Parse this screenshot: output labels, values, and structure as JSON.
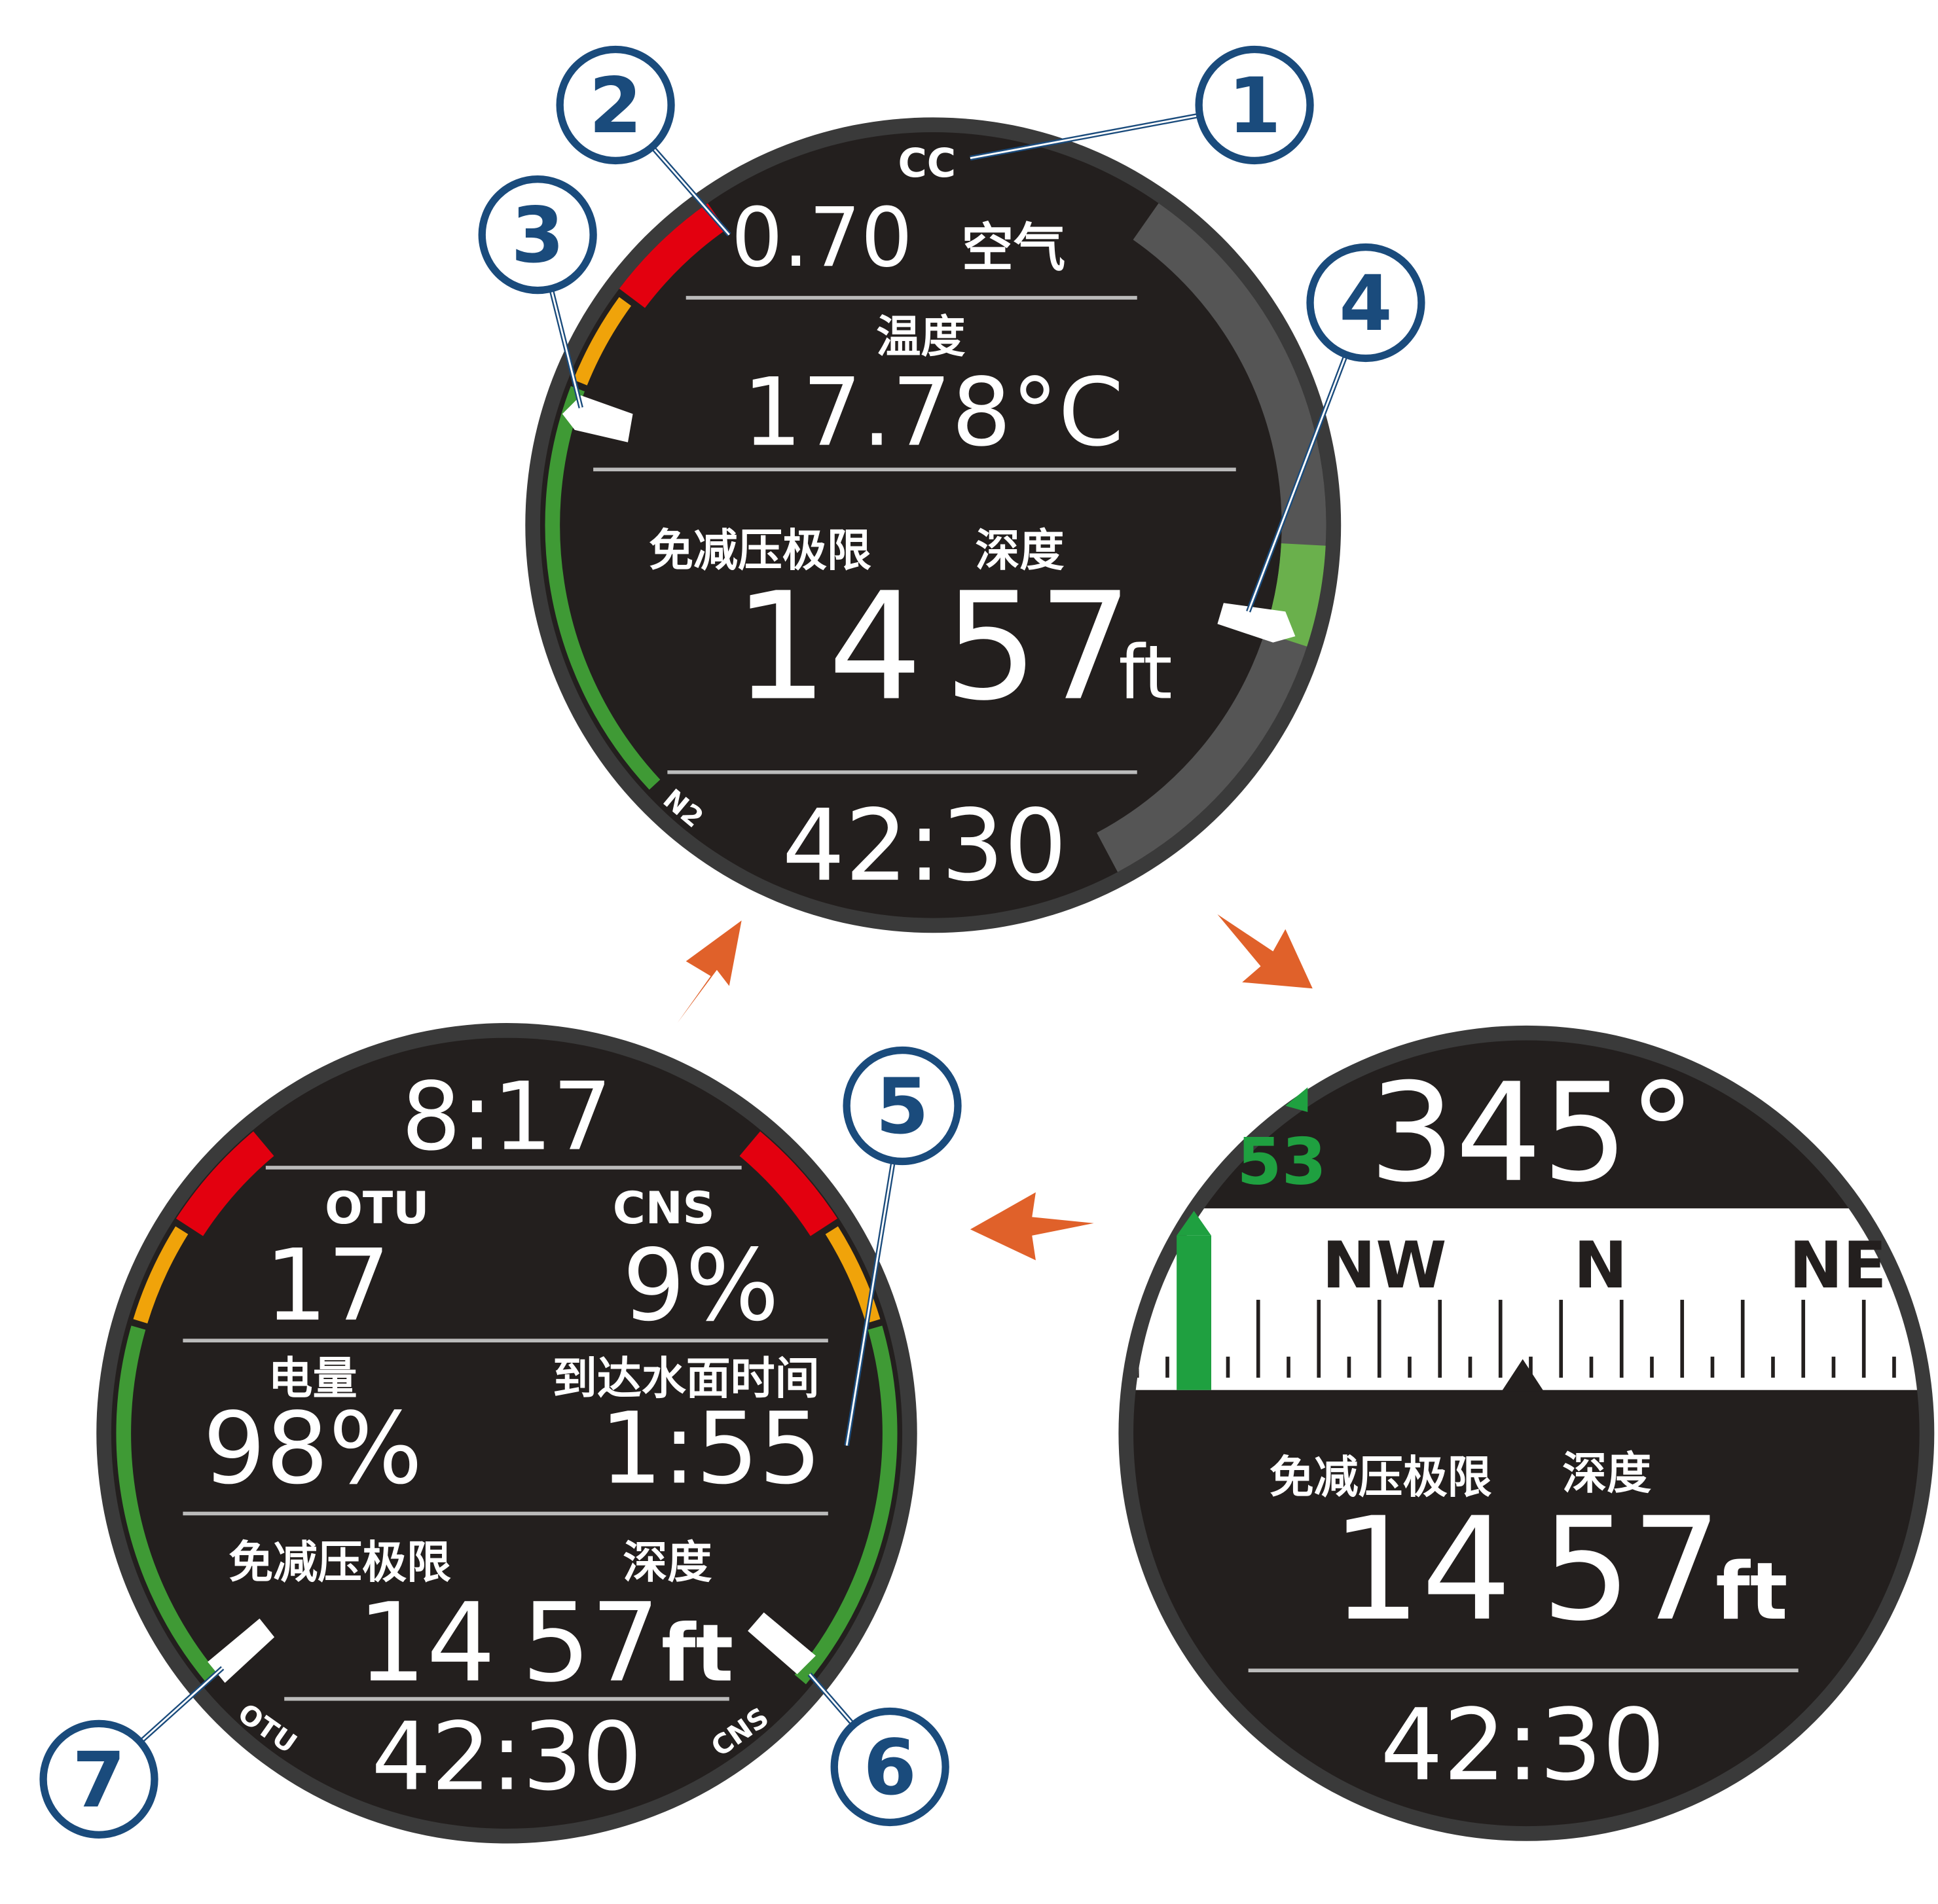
{
  "callouts": [
    "1",
    "2",
    "3",
    "4",
    "5",
    "6",
    "7"
  ],
  "screen_top": {
    "mode": "CC",
    "po2": "0.70",
    "gas": "空气",
    "temp_label": "温度",
    "temp": "17.78°C",
    "ndl_label": "免减压极限",
    "depth_label": "深度",
    "ndl": "14",
    "depth": "57",
    "depth_unit": "ft",
    "gauge_label": "N2",
    "time": "42:30"
  },
  "screen_right": {
    "heading_offset": "53",
    "heading": "345°",
    "compass": [
      "NW",
      "N",
      "NE"
    ],
    "ndl_label": "免减压极限",
    "depth_label": "深度",
    "ndl": "14",
    "depth": "57",
    "depth_unit": "ft",
    "time": "42:30"
  },
  "screen_left": {
    "clock": "8:17",
    "otu_label": "OTU",
    "otu": "17",
    "cns_label": "CNS",
    "cns": "9%",
    "battery_label": "电量",
    "battery": "98%",
    "tts_label": "到达水面时间",
    "tts": "1:55",
    "ndl_label": "免减压极限",
    "depth_label": "深度",
    "ndl": "14",
    "depth": "57",
    "depth_unit": "ft",
    "time": "42:30",
    "left_gauge_label": "OTU",
    "right_gauge_label": "CNS"
  }
}
